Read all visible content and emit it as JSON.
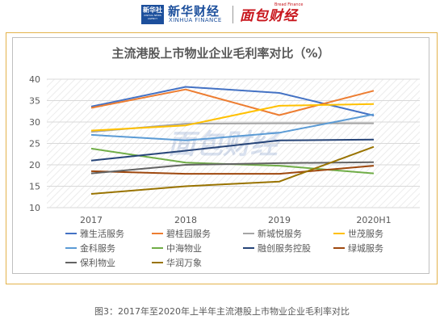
{
  "header": {
    "xinhua_logo_text": "新华社",
    "xinhua_logo_sub": "XINHUA NEWS AGENCY",
    "xinhua_finance_name": "新华财经",
    "xinhua_finance_sub": "XINHUA FINANCE",
    "brand2_name": "面包财经",
    "brand2_sub": "Bread Finance"
  },
  "watermark": "面包财经",
  "caption": "图3：2017年至2020年上半年主流港股上市物业企业毛利率对比",
  "colors": {
    "frame": "#e3b24b",
    "grid": "#d9d9d9",
    "axis_text": "#595959"
  },
  "chart_data": {
    "type": "line",
    "title": "主流港股上市物业企业毛利率对比（%）",
    "categories": [
      "2017",
      "2018",
      "2019",
      "2020H1"
    ],
    "ylim": [
      10,
      40
    ],
    "yticks": [
      10,
      15,
      20,
      25,
      30,
      35,
      40
    ],
    "grid": true,
    "legend_position": "bottom",
    "series": [
      {
        "name": "雅生活服务",
        "color": "#4472c4",
        "values": [
          33.6,
          38.2,
          36.8,
          31.5
        ]
      },
      {
        "name": "碧桂园服务",
        "color": "#ed7d31",
        "values": [
          33.3,
          37.6,
          31.6,
          37.3
        ]
      },
      {
        "name": "新城悦服务",
        "color": "#a5a5a5",
        "values": [
          27.7,
          29.6,
          29.7,
          29.7
        ]
      },
      {
        "name": "世茂服务",
        "color": "#ffc000",
        "values": [
          28.0,
          29.2,
          33.8,
          34.2
        ]
      },
      {
        "name": "金科服务",
        "color": "#5b9bd5",
        "values": [
          27.0,
          25.7,
          27.5,
          31.8
        ]
      },
      {
        "name": "中海物业",
        "color": "#70ad47",
        "values": [
          23.8,
          20.5,
          19.8,
          18.0
        ]
      },
      {
        "name": "融创服务控股",
        "color": "#264478",
        "values": [
          21.0,
          23.3,
          25.7,
          25.9
        ]
      },
      {
        "name": "绿城服务",
        "color": "#9e480e",
        "values": [
          18.5,
          17.9,
          17.9,
          19.8
        ]
      },
      {
        "name": "保利物业",
        "color": "#636363",
        "values": [
          18.0,
          20.0,
          20.4,
          20.6
        ]
      },
      {
        "name": "华润万象",
        "color": "#997300",
        "values": [
          13.2,
          15.0,
          16.1,
          24.2
        ]
      }
    ]
  }
}
